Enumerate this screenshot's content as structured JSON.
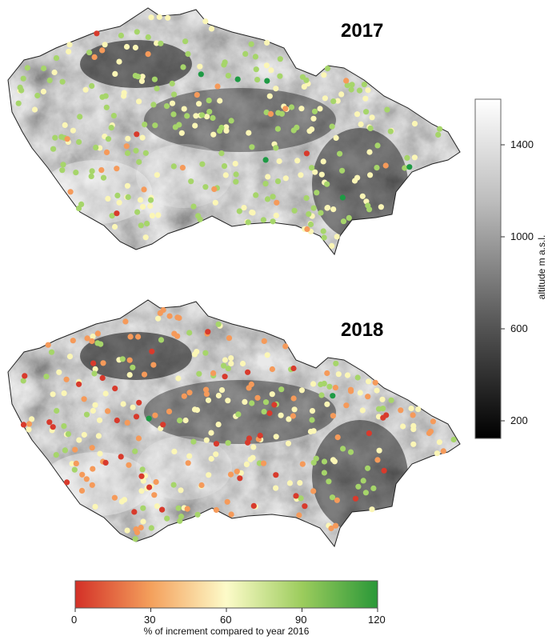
{
  "maps": [
    {
      "title": "2017",
      "category_counts": {
        "red": 4,
        "orange": 20,
        "light_yellow": 120,
        "light_green": 150,
        "dark_green": 6
      }
    },
    {
      "title": "2018",
      "category_counts": {
        "red": 40,
        "orange": 90,
        "light_yellow": 110,
        "light_green": 70,
        "dark_green": 2
      }
    }
  ],
  "altitude_scale": {
    "label": "altitude m a.s.l.",
    "ticks": [
      "1400",
      "1000",
      "600",
      "200"
    ],
    "range": [
      100,
      1600
    ],
    "tick_values": [
      1400,
      1000,
      600,
      200
    ]
  },
  "increment_scale": {
    "label": "% of increment compared to year 2016",
    "ticks": [
      "0",
      "30",
      "60",
      "90",
      "120"
    ],
    "range": [
      0,
      120
    ],
    "colors": [
      "#d33027",
      "#f4a05c",
      "#fdfbc9",
      "#9ccc5d",
      "#2a9838"
    ]
  },
  "point_colors": {
    "red": "#d83a2c",
    "orange": "#f59a5a",
    "light_yellow": "#fbf6b6",
    "light_green": "#a6d56a",
    "dark_green": "#1e9a44"
  }
}
